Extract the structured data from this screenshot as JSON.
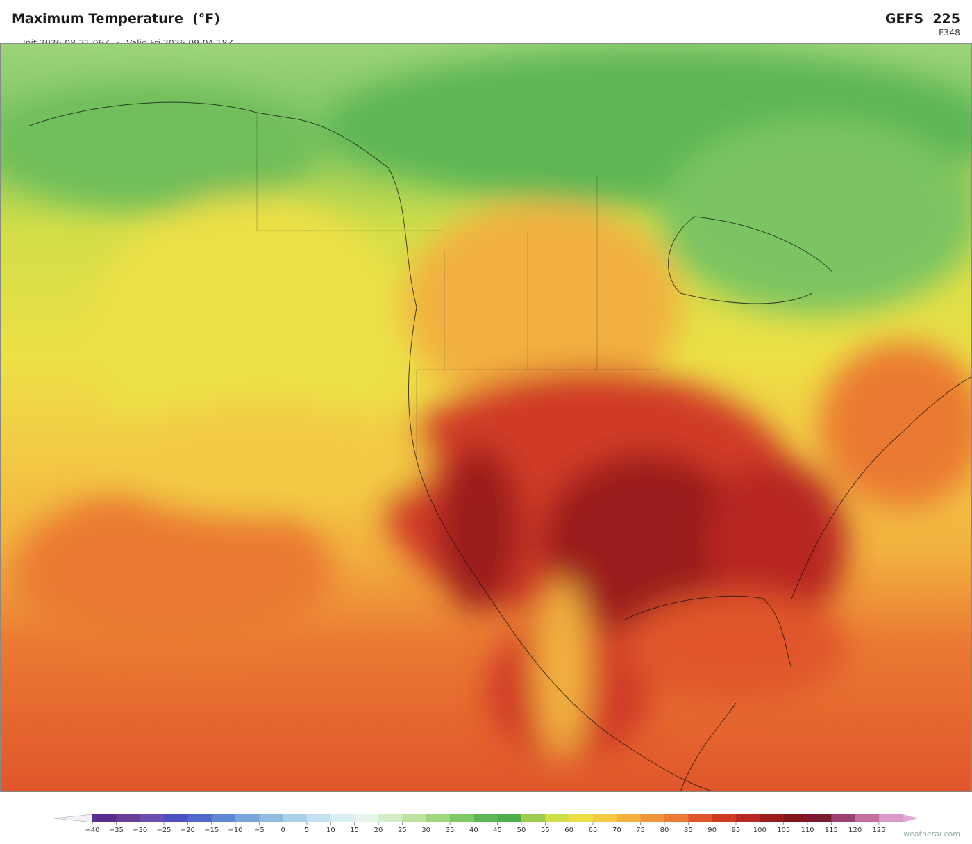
{
  "header": {
    "title": "Maximum Temperature  (°F)",
    "init": "Init 2026-08-21 06Z",
    "separator": "·",
    "valid": "Valid Fri 2026-09-04 18Z",
    "model": "GEFS  225",
    "forecast_hour": "F348"
  },
  "colorbar": {
    "ticks": [
      {
        "value": -40,
        "label": "−40"
      },
      {
        "value": -35,
        "label": "−35"
      },
      {
        "value": -30,
        "label": "−30"
      },
      {
        "value": -25,
        "label": "−25"
      },
      {
        "value": -20,
        "label": "−20"
      },
      {
        "value": -15,
        "label": "−15"
      },
      {
        "value": -10,
        "label": "−10"
      },
      {
        "value": -5,
        "label": "−5"
      },
      0,
      5,
      10,
      15,
      20,
      25,
      30,
      35,
      40,
      45,
      50,
      55,
      60,
      65,
      70,
      75,
      80,
      85,
      90,
      95,
      100,
      105,
      110,
      115,
      120,
      125
    ],
    "colors": [
      "#5b2c8f",
      "#6a3d9a",
      "#6a4fb0",
      "#4b4fc0",
      "#4f66cc",
      "#5f86d3",
      "#79a4da",
      "#8fbbe0",
      "#a9d2ea",
      "#c3e2ef",
      "#d9eef2",
      "#e6f4ea",
      "#d3edc8",
      "#bde3a0",
      "#9fd67e",
      "#7fc866",
      "#5db655",
      "#4eae4b",
      "#9dcc4e",
      "#d2de48",
      "#ece046",
      "#f3ca45",
      "#f2b13f",
      "#ef963a",
      "#ea7a33",
      "#e0562b",
      "#d03a25",
      "#b82720",
      "#9b1c1e",
      "#82161d",
      "#7a1a30",
      "#9b4270",
      "#c46fa0",
      "#d89bc8"
    ],
    "under_color": "#f4f0f8",
    "over_color": "#e3a9d6"
  },
  "footer": {
    "watermark": "weatherai.com"
  }
}
